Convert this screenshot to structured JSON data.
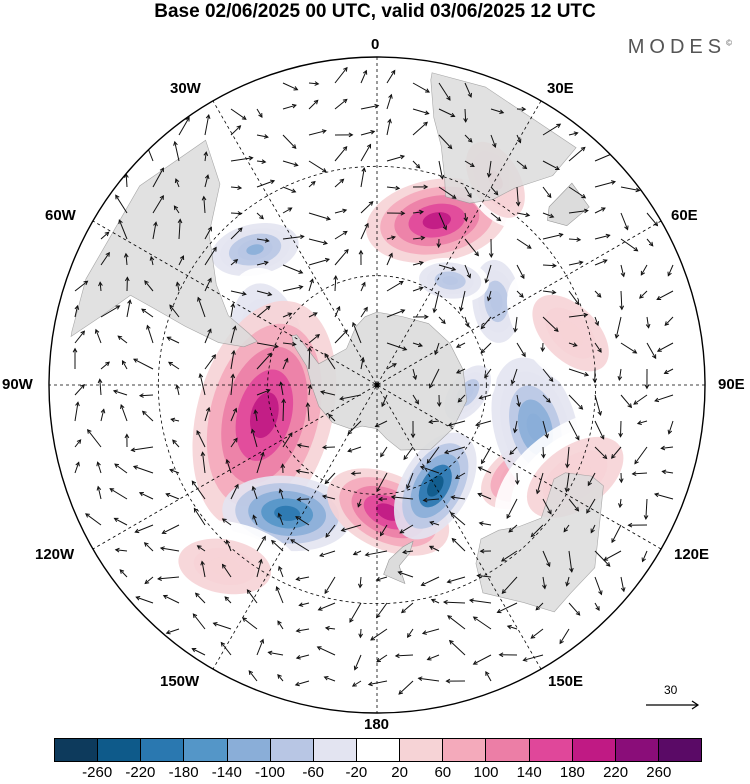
{
  "title": "Base 02/06/2025 00 UTC, valid 03/06/2025 12 UTC",
  "brand": "MODES",
  "brand_mark": "©",
  "longitude_labels": {
    "top": "0",
    "top_right": "30E",
    "right_upper": "60E",
    "right": "90E",
    "right_lower": "120E",
    "bottom_right": "150E",
    "bottom": "180",
    "bottom_left": "150W",
    "left_lower": "120W",
    "left": "90W",
    "left_upper": "60W",
    "top_left": "30W"
  },
  "wind_reference": "30",
  "colorbar": {
    "ticks": [
      "-260",
      "-220",
      "-180",
      "-140",
      "-100",
      "-60",
      "-20",
      "20",
      "60",
      "100",
      "140",
      "180",
      "220",
      "260"
    ],
    "colors": [
      "#0d3a5c",
      "#0e5a8a",
      "#2a78b0",
      "#5496c8",
      "#8aaed8",
      "#b8c6e4",
      "#e3e4f1",
      "#ffffff",
      "#f6d3d6",
      "#f4aabb",
      "#ec7ea6",
      "#e0479a",
      "#c01a84",
      "#8a0d79",
      "#5a0a66"
    ]
  },
  "anomalies": [
    {
      "lon": 20,
      "lat": -42,
      "r": 55,
      "value": 200
    },
    {
      "lon": 55,
      "lat": -50,
      "r": 40,
      "value": -100
    },
    {
      "lon": 35,
      "lat": -55,
      "r": 30,
      "value": -80
    },
    {
      "lon": -42,
      "lat": -40,
      "r": 34,
      "value": -120
    },
    {
      "lon": -70,
      "lat": -58,
      "r": 60,
      "value": -60
    },
    {
      "lon": -105,
      "lat": -58,
      "r": 90,
      "value": 200
    },
    {
      "lon": -145,
      "lat": -47,
      "r": 50,
      "value": -200
    },
    {
      "lon": 175,
      "lat": -55,
      "r": 50,
      "value": 200
    },
    {
      "lon": 150,
      "lat": -58,
      "r": 45,
      "value": -230
    },
    {
      "lon": 120,
      "lat": -42,
      "r": 40,
      "value": 150
    },
    {
      "lon": 105,
      "lat": -45,
      "r": 55,
      "value": -130
    },
    {
      "lon": 95,
      "lat": -65,
      "r": 30,
      "value": -90
    },
    {
      "lon": 75,
      "lat": -35,
      "r": 60,
      "value": 40
    },
    {
      "lon": 30,
      "lat": -25,
      "r": 40,
      "value": 60
    },
    {
      "lon": -140,
      "lat": -25,
      "r": 60,
      "value": 40
    },
    {
      "lon": 115,
      "lat": -30,
      "r": 70,
      "value": 40
    }
  ]
}
